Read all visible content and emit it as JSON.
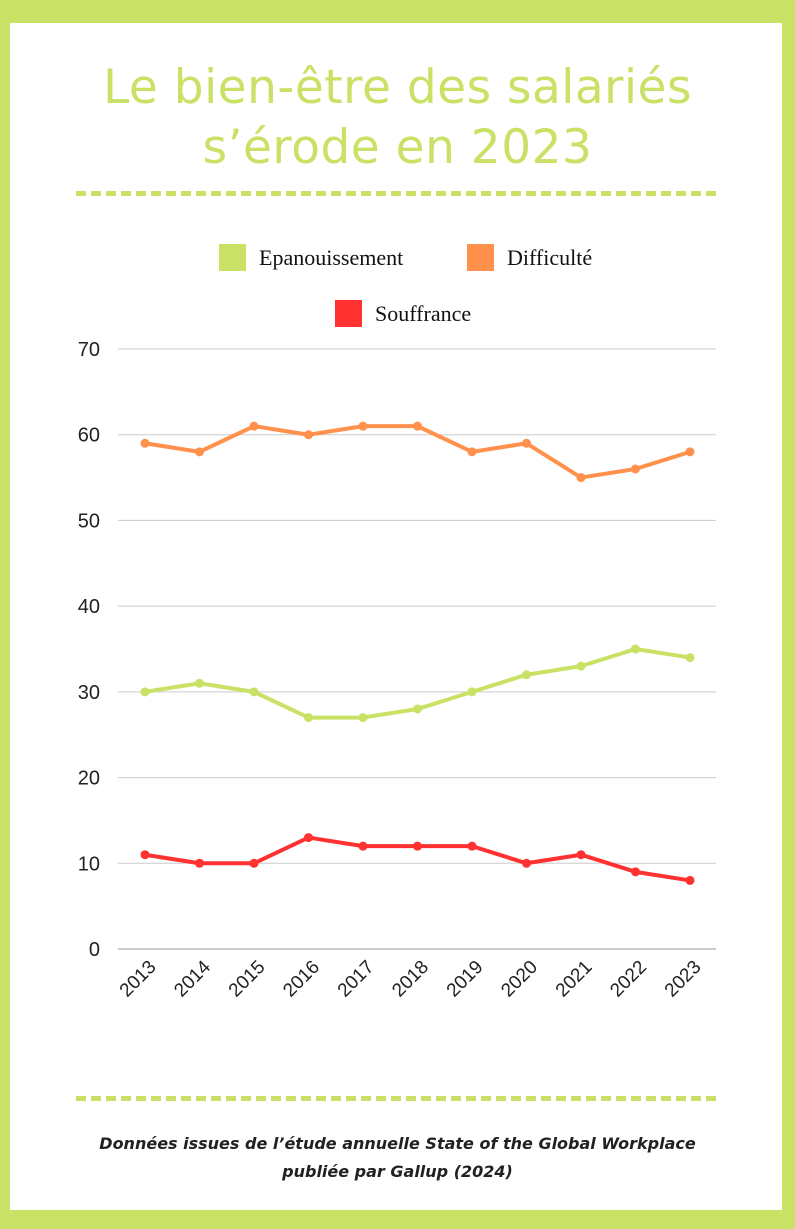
{
  "title_line1": "Le bien-être des salariés",
  "title_line2": "s’érode en 2023",
  "footer_line1": "Données issues de l’étude annuelle State of the Global Workplace",
  "footer_line2": "publiée par Gallup (2024)",
  "colors": {
    "frame": "#c9e165",
    "epanouissement": "#c9e165",
    "difficulte": "#ff914d",
    "souffrance": "#ff3131"
  },
  "chart_data": {
    "type": "line",
    "title": "Le bien-être des salariés s’érode en 2023",
    "xlabel": "",
    "ylabel": "",
    "ylim": [
      0,
      70
    ],
    "yticks": [
      "0",
      "10",
      "20",
      "30",
      "40",
      "50",
      "60",
      "70"
    ],
    "grid": true,
    "legend_position": "top",
    "categories": [
      "2013",
      "2014",
      "2015",
      "2016",
      "2017",
      "2018",
      "2019",
      "2020",
      "2021",
      "2022",
      "2023"
    ],
    "series": [
      {
        "name": "Epanouissement",
        "color": "#c9e165",
        "values": [
          30,
          31,
          30,
          27,
          27,
          28,
          30,
          32,
          33,
          35,
          34
        ]
      },
      {
        "name": "Difficulté",
        "color": "#ff914d",
        "values": [
          59,
          58,
          61,
          60,
          61,
          61,
          58,
          59,
          55,
          56,
          58
        ]
      },
      {
        "name": "Souffrance",
        "color": "#ff3131",
        "values": [
          11,
          10,
          10,
          13,
          12,
          12,
          12,
          10,
          11,
          9,
          8
        ]
      }
    ]
  }
}
